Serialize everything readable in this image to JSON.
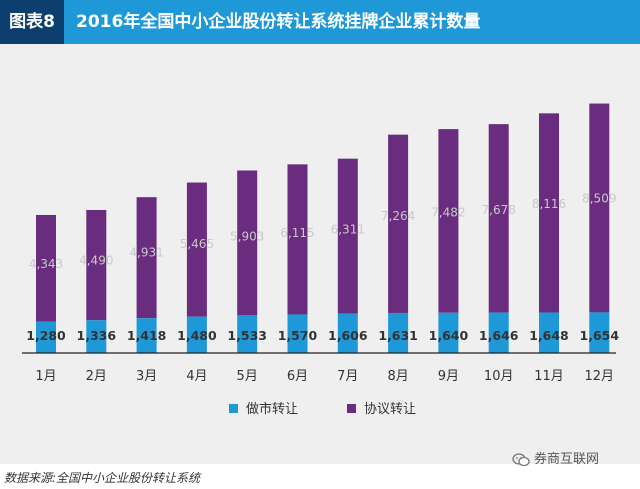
{
  "header": {
    "badge": "图表8",
    "title": "2016年全国中小企业股份转让系统挂牌企业累计数量"
  },
  "colors": {
    "header_bg": "#1f98d8",
    "badge_bg": "#0d3f6e",
    "market_maker": "#1f98d8",
    "agreement": "#6a2c7e",
    "agreement_label": "#c9c9c9"
  },
  "chart_data": {
    "type": "bar",
    "stacked": true,
    "categories": [
      "1月",
      "2月",
      "3月",
      "4月",
      "5月",
      "6月",
      "7月",
      "8月",
      "9月",
      "10月",
      "11月",
      "12月"
    ],
    "series": [
      {
        "name": "做市转让",
        "values": [
          1280,
          1336,
          1418,
          1480,
          1533,
          1570,
          1606,
          1631,
          1640,
          1646,
          1648,
          1654
        ]
      },
      {
        "name": "协议转让",
        "values": [
          4343,
          4490,
          4931,
          5465,
          5903,
          6115,
          6311,
          7264,
          7482,
          7678,
          8116,
          8509
        ]
      }
    ],
    "value_labels": {
      "做市转让": [
        "1,280",
        "1,336",
        "1,418",
        "1,480",
        "1,533",
        "1,570",
        "1,606",
        "1,631",
        "1,640",
        "1,646",
        "1,648",
        "1,654"
      ],
      "协议转让": [
        "4,343",
        "4,490",
        "4,931",
        "5,465",
        "5,903",
        "6,115",
        "6,311",
        "7,264",
        "7,482",
        "7,678",
        "8,116",
        "8,509"
      ]
    },
    "ylim": [
      0,
      11000
    ],
    "grid": false,
    "legend": "bottom"
  },
  "footer": {
    "source": "数据来源:全国中小企业股份转让系统",
    "watermark": "券商互联网",
    "watermark_icon": "wechat-icon"
  }
}
